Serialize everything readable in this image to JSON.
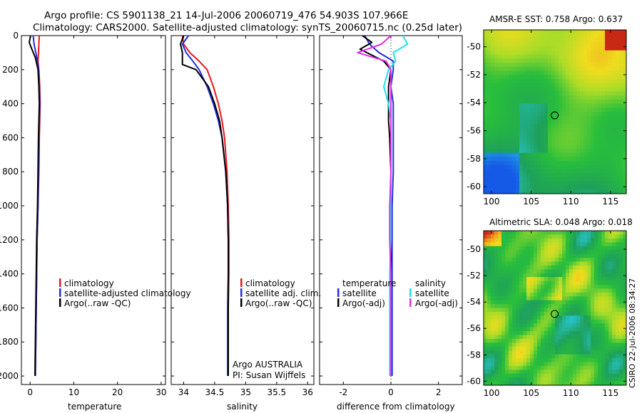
{
  "header": {
    "title_line1": "Argo profile: CS 5901138_21 14-Jul-2006 20060719_476 54.903S 107.966E",
    "title_line2": "Climatology: CARS2000. Satellite-adjusted climatology: synTS_20060715.nc (0.25d later)"
  },
  "side_stamp": "CSIRO 22-Jul-2006 08:34:27",
  "colors": {
    "climatology": "#e41a1c",
    "satellite": "#1f2fd8",
    "argo": "#000000",
    "salinity_satellite": "#22e0e8",
    "salinity_argo": "#e02ee8",
    "marker": "#000000"
  },
  "chart_data": [
    {
      "id": "temperature",
      "type": "line",
      "xlabel": "temperature",
      "ylabel": "",
      "xlim": [
        -2,
        31
      ],
      "ylim": [
        2050,
        0
      ],
      "xticks": [
        0,
        10,
        20,
        30
      ],
      "yticks": [
        0,
        200,
        400,
        600,
        800,
        1000,
        1200,
        1400,
        1600,
        1800,
        2000
      ],
      "legend": [
        "climatology",
        "satellite-adjusted climatology",
        "Argo(..raw -QC)"
      ],
      "series": [
        {
          "name": "climatology",
          "color_key": "climatology",
          "x": [
            2.1,
            2.0,
            1.9,
            1.8,
            2.0,
            2.2,
            2.3,
            2.2,
            2.1,
            2.0,
            1.8,
            1.6,
            1.5,
            1.4,
            1.3,
            1.2
          ],
          "y": [
            0,
            50,
            100,
            150,
            200,
            300,
            400,
            500,
            600,
            800,
            1000,
            1200,
            1400,
            1600,
            1800,
            2000
          ]
        },
        {
          "name": "satellite-adjusted climatology",
          "color_key": "satellite",
          "x": [
            0.7,
            0.9,
            1.3,
            1.7,
            1.9,
            2.1,
            2.2,
            2.1,
            2.0,
            1.9,
            1.8,
            1.6,
            1.5,
            1.4,
            1.3,
            1.2
          ],
          "y": [
            0,
            50,
            100,
            150,
            200,
            300,
            400,
            500,
            600,
            800,
            1000,
            1200,
            1400,
            1600,
            1800,
            2000
          ]
        },
        {
          "name": "Argo(..raw -QC)",
          "color_key": "argo",
          "x": [
            0.1,
            -0.2,
            0.4,
            1.2,
            1.8,
            2.0,
            2.1,
            2.0,
            1.9,
            1.8,
            1.7,
            1.5,
            1.4,
            1.3,
            1.2,
            1.1
          ],
          "y": [
            0,
            40,
            80,
            130,
            200,
            300,
            400,
            500,
            600,
            800,
            1000,
            1200,
            1400,
            1600,
            1800,
            2000
          ]
        }
      ]
    },
    {
      "id": "salinity",
      "type": "line",
      "xlabel": "salinity",
      "xlim": [
        33.8,
        36.1
      ],
      "ylim": [
        2050,
        0
      ],
      "xticks": [
        34,
        34.5,
        35,
        35.5,
        36
      ],
      "legend": [
        "climatology",
        "satellite adj. clim.",
        "Argo(..raw -QC)"
      ],
      "annotation_line1": "Argo AUSTRALIA",
      "annotation_line2": "PI: Susan Wijffels",
      "series": [
        {
          "name": "climatology",
          "color_key": "climatology",
          "x": [
            33.98,
            34.0,
            34.1,
            34.25,
            34.38,
            34.48,
            34.56,
            34.62,
            34.66,
            34.7,
            34.72,
            34.73,
            34.73,
            34.72,
            34.72,
            34.72
          ],
          "y": [
            0,
            50,
            100,
            150,
            200,
            300,
            400,
            500,
            600,
            800,
            1000,
            1200,
            1400,
            1600,
            1800,
            2000
          ]
        },
        {
          "name": "satellite adj. clim.",
          "color_key": "satellite",
          "x": [
            34.08,
            33.98,
            34.04,
            34.15,
            34.25,
            34.38,
            34.48,
            34.56,
            34.62,
            34.68,
            34.71,
            34.72,
            34.72,
            34.71,
            34.71,
            34.71
          ],
          "y": [
            0,
            50,
            100,
            150,
            200,
            300,
            400,
            500,
            600,
            800,
            1000,
            1200,
            1400,
            1600,
            1800,
            2000
          ]
        },
        {
          "name": "Argo(..raw -QC)",
          "color_key": "argo",
          "x": [
            34.0,
            33.95,
            33.98,
            33.98,
            34.2,
            34.4,
            34.5,
            34.58,
            34.62,
            34.68,
            34.71,
            34.72,
            34.72,
            34.72,
            34.72,
            34.72
          ],
          "y": [
            0,
            50,
            100,
            170,
            200,
            300,
            400,
            500,
            600,
            800,
            1000,
            1200,
            1400,
            1600,
            1800,
            2000
          ]
        }
      ]
    },
    {
      "id": "difference",
      "type": "line",
      "xlabel": "difference from climatology",
      "xlim": [
        -3,
        3
      ],
      "ylim": [
        2050,
        0
      ],
      "xticks": [
        -2,
        0,
        2
      ],
      "legend_left_title": "temperature",
      "legend_right_title": "salinity",
      "legend": [
        "satellite",
        "Argo(-adj)",
        "satellite",
        "Argo(-adj)"
      ],
      "series": [
        {
          "name": "temperature satellite",
          "color_key": "satellite",
          "x": [
            -1.1,
            -0.9,
            -0.5,
            0.1,
            0.1,
            0.0,
            0.1,
            0.1,
            0.1,
            0.1,
            0.05,
            0.05,
            0.05,
            0.05,
            0.05,
            0.05
          ],
          "y": [
            0,
            50,
            100,
            150,
            200,
            300,
            400,
            500,
            600,
            800,
            1000,
            1200,
            1400,
            1600,
            1800,
            2000
          ]
        },
        {
          "name": "temperature Argo(-adj)",
          "color_key": "argo",
          "x": [
            -1.2,
            -0.8,
            -1.3,
            -0.3,
            0.0,
            -0.1,
            -0.1,
            -0.1,
            -0.05,
            0.0,
            0.0,
            0.0,
            0.0,
            0.0,
            0.0,
            0.0
          ],
          "y": [
            0,
            40,
            80,
            150,
            200,
            300,
            400,
            500,
            600,
            800,
            1000,
            1200,
            1400,
            1600,
            1800,
            2000
          ]
        },
        {
          "name": "salinity satellite",
          "color_key": "salinity_satellite",
          "x": [
            0.5,
            0.7,
            0.1,
            0.2,
            -0.1,
            -0.3,
            -0.1,
            0.0,
            0.0,
            0.0,
            0.0,
            0.0,
            -0.05,
            -0.05,
            -0.05,
            -0.05
          ],
          "y": [
            0,
            50,
            100,
            150,
            200,
            300,
            400,
            500,
            600,
            800,
            1000,
            1200,
            1400,
            1600,
            1800,
            2000
          ]
        },
        {
          "name": "salinity Argo(-adj)",
          "color_key": "salinity_argo",
          "x": [
            0.0,
            -0.4,
            -1.4,
            -0.2,
            0.0,
            0.0,
            0.0,
            0.0,
            0.0,
            0.0,
            -0.05,
            -0.05,
            0.0,
            0.0,
            0.0,
            0.0
          ],
          "y": [
            0,
            50,
            100,
            150,
            200,
            300,
            400,
            500,
            600,
            800,
            1000,
            1200,
            1400,
            1600,
            1800,
            2000
          ]
        }
      ]
    },
    {
      "id": "sst_map",
      "type": "heatmap",
      "title": "AMSR-E SST: 0.758 Argo: 0.637",
      "xlim": [
        99,
        117
      ],
      "ylim": [
        -60.5,
        -48.8
      ],
      "xticks": [
        100,
        105,
        110,
        115
      ],
      "yticks": [
        -50,
        -52,
        -54,
        -56,
        -58,
        -60
      ],
      "marker": {
        "lon": 107.966,
        "lat": -54.903
      }
    },
    {
      "id": "sla_map",
      "type": "heatmap",
      "title": "Altimetric SLA: 0.048 Argo: 0.018",
      "xlim": [
        99,
        117
      ],
      "ylim": [
        -60.3,
        -48.6
      ],
      "xticks": [
        100,
        105,
        110,
        115
      ],
      "yticks": [
        -50,
        -52,
        -54,
        -56,
        -58,
        -60
      ],
      "marker": {
        "lon": 107.966,
        "lat": -54.903
      }
    }
  ]
}
